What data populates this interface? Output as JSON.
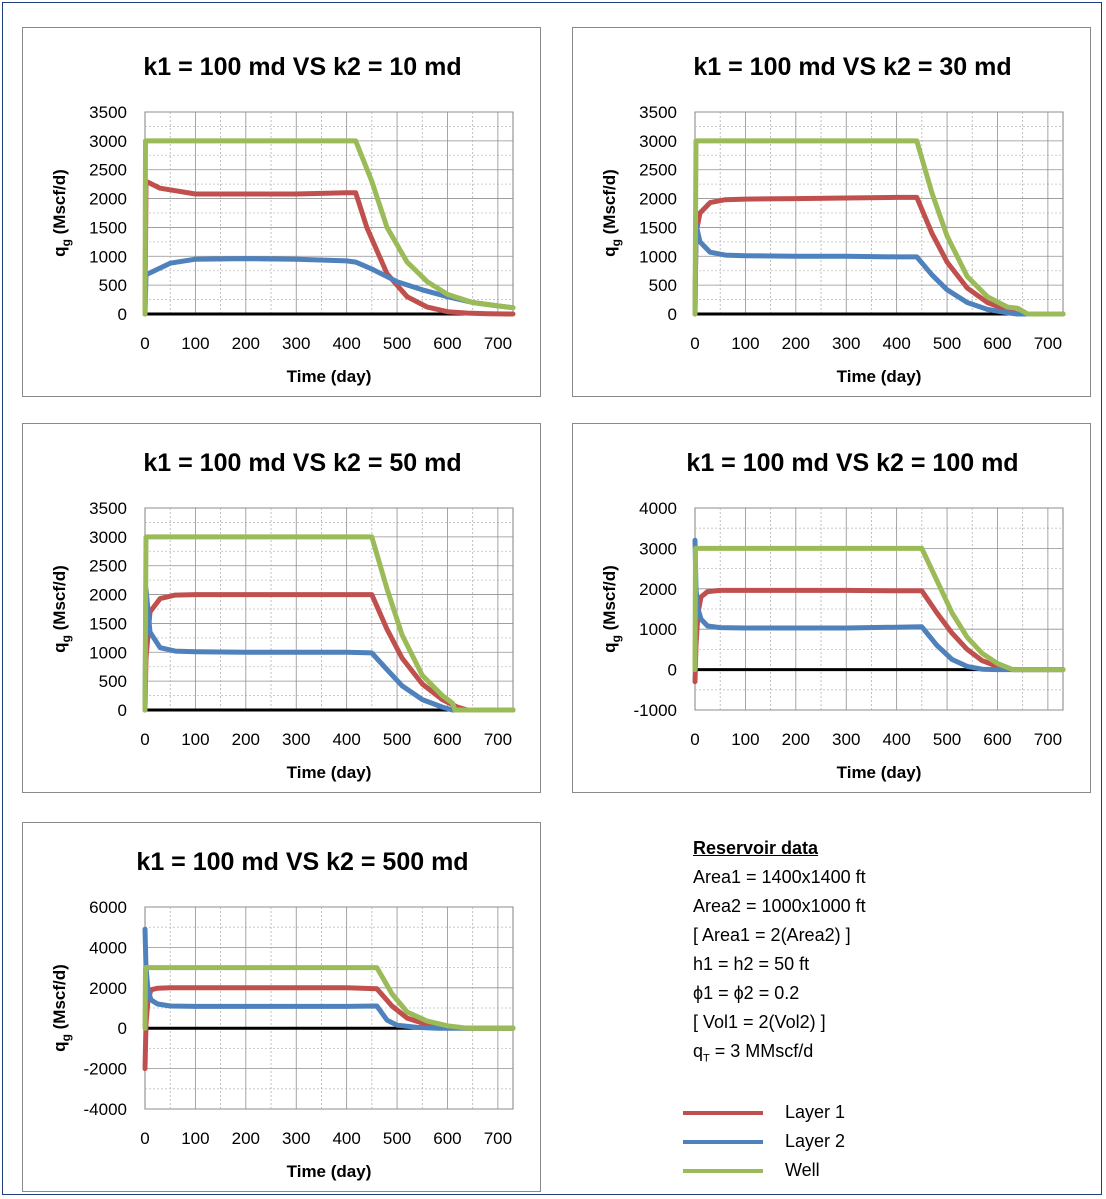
{
  "colors": {
    "layer1": "#c0504d",
    "layer2": "#4f81bd",
    "well": "#9bbb59",
    "zero": "#000000"
  },
  "chart_data": [
    {
      "type": "line",
      "title": "k1 = 100 md  VS  k2 = 10 md",
      "xlabel": "Time (day)",
      "ylabel": "qg (Mscf/d)",
      "xlim": [
        0,
        730
      ],
      "ylim": [
        0,
        3500
      ],
      "xticks": [
        "0",
        "100",
        "200",
        "300",
        "400",
        "500",
        "600",
        "700"
      ],
      "yticks": [
        "0",
        "500",
        "1000",
        "1500",
        "2000",
        "2500",
        "3000",
        "3500"
      ],
      "grid": true,
      "series": [
        {
          "name": "Layer 1",
          "x": [
            0,
            2,
            30,
            100,
            200,
            300,
            400,
            418,
            440,
            480,
            520,
            560,
            600,
            640,
            680,
            730
          ],
          "values": [
            0,
            2300,
            2180,
            2080,
            2080,
            2080,
            2100,
            2100,
            1500,
            700,
            300,
            120,
            40,
            15,
            5,
            0
          ]
        },
        {
          "name": "Layer 2",
          "x": [
            0,
            2,
            50,
            100,
            200,
            300,
            400,
            418,
            450,
            500,
            550,
            600,
            650,
            700,
            730
          ],
          "values": [
            0,
            680,
            880,
            950,
            960,
            950,
            920,
            900,
            780,
            560,
            420,
            300,
            200,
            140,
            110
          ]
        },
        {
          "name": "Well",
          "x": [
            0,
            1,
            100,
            200,
            300,
            400,
            418,
            450,
            480,
            520,
            560,
            600,
            650,
            700,
            730
          ],
          "values": [
            0,
            3000,
            3000,
            3000,
            3000,
            3000,
            3000,
            2300,
            1500,
            900,
            560,
            340,
            200,
            140,
            110
          ]
        }
      ]
    },
    {
      "type": "line",
      "title": "k1 = 100 md  VS  k2  = 30 md",
      "xlabel": "Time (day)",
      "ylabel": "qg (Mscf/d)",
      "xlim": [
        0,
        730
      ],
      "ylim": [
        0,
        3500
      ],
      "xticks": [
        "0",
        "100",
        "200",
        "300",
        "400",
        "500",
        "600",
        "700"
      ],
      "yticks": [
        "0",
        "500",
        "1000",
        "1500",
        "2000",
        "2500",
        "3000",
        "3500"
      ],
      "grid": true,
      "series": [
        {
          "name": "Layer 1",
          "x": [
            0,
            2,
            10,
            30,
            60,
            100,
            200,
            300,
            400,
            440,
            470,
            500,
            540,
            580,
            620,
            640,
            660,
            730
          ],
          "values": [
            0,
            1400,
            1750,
            1930,
            1980,
            1990,
            2000,
            2010,
            2020,
            2020,
            1400,
            900,
            450,
            200,
            70,
            0,
            0,
            0
          ]
        },
        {
          "name": "Layer 2",
          "x": [
            0,
            2,
            10,
            30,
            60,
            100,
            200,
            300,
            400,
            440,
            470,
            500,
            540,
            580,
            620,
            640,
            660,
            730
          ],
          "values": [
            0,
            1550,
            1250,
            1070,
            1020,
            1010,
            1000,
            1000,
            990,
            990,
            680,
            420,
            200,
            80,
            20,
            0,
            0,
            0
          ]
        },
        {
          "name": "Well",
          "x": [
            0,
            2,
            100,
            200,
            300,
            400,
            440,
            470,
            500,
            540,
            580,
            620,
            640,
            660,
            730
          ],
          "values": [
            0,
            3000,
            3000,
            3000,
            3000,
            3000,
            3000,
            2100,
            1350,
            650,
            300,
            120,
            100,
            0,
            0
          ]
        }
      ]
    },
    {
      "type": "line",
      "title": "k1 = 100 md  VS  k2  = 50 md",
      "xlabel": "Time (day)",
      "ylabel": "qg (Mscf/d)",
      "xlim": [
        0,
        730
      ],
      "ylim": [
        0,
        3500
      ],
      "xticks": [
        "0",
        "100",
        "200",
        "300",
        "400",
        "500",
        "600",
        "700"
      ],
      "yticks": [
        "0",
        "500",
        "1000",
        "1500",
        "2000",
        "2500",
        "3000",
        "3500"
      ],
      "grid": true,
      "series": [
        {
          "name": "Layer 1",
          "x": [
            0,
            2,
            10,
            30,
            60,
            100,
            200,
            300,
            400,
            450,
            480,
            510,
            550,
            590,
            620,
            640,
            730
          ],
          "values": [
            0,
            900,
            1700,
            1930,
            1990,
            2000,
            2000,
            2000,
            2000,
            2000,
            1400,
            900,
            450,
            180,
            50,
            0,
            0
          ]
        },
        {
          "name": "Layer 2",
          "x": [
            0,
            2,
            10,
            30,
            60,
            100,
            200,
            300,
            400,
            450,
            480,
            510,
            550,
            590,
            610,
            640,
            730
          ],
          "values": [
            0,
            2100,
            1350,
            1080,
            1020,
            1010,
            1000,
            1000,
            1000,
            990,
            700,
            420,
            180,
            50,
            0,
            0,
            0
          ]
        },
        {
          "name": "Well",
          "x": [
            0,
            2,
            100,
            200,
            300,
            400,
            450,
            480,
            510,
            550,
            590,
            610,
            615,
            640,
            730
          ],
          "values": [
            0,
            3000,
            3000,
            3000,
            3000,
            3000,
            3000,
            2100,
            1300,
            600,
            250,
            120,
            0,
            0,
            0
          ]
        }
      ]
    },
    {
      "type": "line",
      "title": "k1 = 100 md  VS  k2  = 100 md",
      "xlabel": "Time (day)",
      "ylabel": "qg (Mscf/d)",
      "xlim": [
        0,
        730
      ],
      "ylim": [
        -1000,
        4000
      ],
      "xticks": [
        "0",
        "100",
        "200",
        "300",
        "400",
        "500",
        "600",
        "700"
      ],
      "yticks": [
        "-1000",
        "0",
        "1000",
        "2000",
        "3000",
        "4000"
      ],
      "grid": true,
      "series": [
        {
          "name": "Layer 1",
          "x": [
            0,
            2,
            6,
            12,
            25,
            50,
            100,
            200,
            300,
            400,
            450,
            480,
            510,
            540,
            570,
            600,
            630,
            730
          ],
          "values": [
            -300,
            600,
            1400,
            1800,
            1930,
            1960,
            1960,
            1960,
            1960,
            1950,
            1950,
            1400,
            900,
            500,
            220,
            80,
            0,
            0
          ]
        },
        {
          "name": "Layer 2",
          "x": [
            0,
            2,
            6,
            12,
            25,
            50,
            100,
            200,
            300,
            400,
            450,
            480,
            510,
            540,
            570,
            600,
            630,
            730
          ],
          "values": [
            3200,
            2000,
            1500,
            1250,
            1080,
            1040,
            1030,
            1030,
            1030,
            1050,
            1060,
            600,
            250,
            80,
            10,
            0,
            0,
            0
          ]
        },
        {
          "name": "Well",
          "x": [
            0,
            1,
            100,
            200,
            300,
            400,
            450,
            480,
            510,
            540,
            570,
            600,
            630,
            730
          ],
          "values": [
            0,
            3000,
            3000,
            3000,
            3000,
            3000,
            3000,
            2200,
            1400,
            800,
            400,
            150,
            0,
            0
          ]
        }
      ]
    },
    {
      "type": "line",
      "title": "k1 = 100 md  VS  k2  = 500 md",
      "xlabel": "Time (day)",
      "ylabel": "qg (Mscf/d)",
      "xlim": [
        0,
        730
      ],
      "ylim": [
        -4000,
        6000
      ],
      "xticks": [
        "0",
        "100",
        "200",
        "300",
        "400",
        "500",
        "600",
        "700"
      ],
      "yticks": [
        "-4000",
        "-2000",
        "0",
        "2000",
        "4000",
        "6000"
      ],
      "grid": true,
      "series": [
        {
          "name": "Layer 1",
          "x": [
            0,
            2,
            6,
            12,
            25,
            50,
            100,
            200,
            300,
            400,
            460,
            490,
            520,
            560,
            600,
            640,
            730
          ],
          "values": [
            -2000,
            200,
            1400,
            1900,
            1980,
            2000,
            2000,
            2000,
            2000,
            2000,
            1950,
            1100,
            500,
            180,
            50,
            0,
            0
          ]
        },
        {
          "name": "Layer 2",
          "x": [
            0,
            2,
            6,
            12,
            25,
            50,
            100,
            200,
            300,
            400,
            460,
            480,
            500,
            540,
            580,
            620,
            730
          ],
          "values": [
            4900,
            3000,
            1900,
            1400,
            1200,
            1100,
            1080,
            1080,
            1080,
            1080,
            1100,
            400,
            150,
            40,
            0,
            0,
            0
          ]
        },
        {
          "name": "Well",
          "x": [
            0,
            1,
            100,
            200,
            300,
            400,
            460,
            490,
            520,
            560,
            600,
            640,
            730
          ],
          "values": [
            0,
            3000,
            3000,
            3000,
            3000,
            3000,
            3000,
            1700,
            800,
            350,
            120,
            0,
            0
          ]
        }
      ]
    }
  ],
  "reservoir": {
    "heading": "Reservoir  data",
    "area1": "Area1 = 1400x1400  ft",
    "area2": "Area2  = 1000x1000  ft",
    "area_ratio": "[ Area1 = 2(Area2)  ]",
    "h": "h1 = h2 = 50 ft",
    "phi": "ϕ1 = ϕ2 = 0.2",
    "vol_ratio": "[ Vol1 = 2(Vol2) ]",
    "qt_prefix": "q",
    "qt_sub": "T",
    "qt_rest": " =  3  MMscf/d"
  },
  "legend": [
    {
      "label": "Layer 1",
      "color": "#c0504d"
    },
    {
      "label": "Layer 2",
      "color": "#4f81bd"
    },
    {
      "label": "Well",
      "color": "#9bbb59"
    }
  ]
}
